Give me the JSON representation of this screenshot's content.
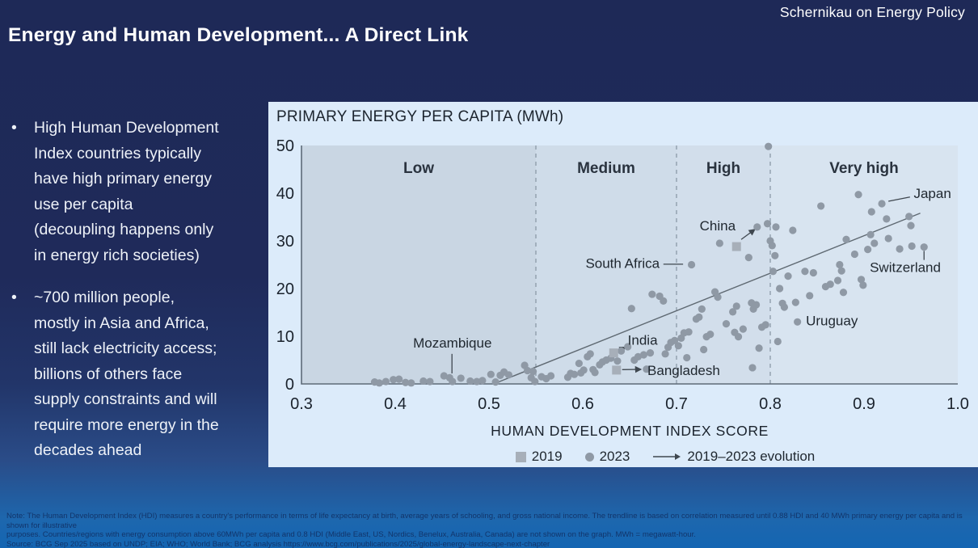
{
  "brand": "Schernikau on Energy Policy",
  "title": "Energy and Human Development... A Direct Link",
  "bullets": [
    "High Human Development\nIndex countries typically\nhave high primary energy\nuse per capita\n(decoupling happens only\nin energy rich societies)",
    "~700 million people,\nmostly in Asia and Africa,\nstill lack electricity access;\nbillions of others face\nsupply constraints and will\nrequire more energy in the\ndecades ahead"
  ],
  "chart": {
    "panel_title": "PRIMARY ENERGY PER CAPITA (MWh)",
    "legend": [
      {
        "marker": "square",
        "label": "2019"
      },
      {
        "marker": "dot",
        "label": "2023"
      },
      {
        "marker": "arrow",
        "label": "2019–2023 evolution"
      }
    ]
  },
  "chart_data": {
    "type": "scatter",
    "title": "PRIMARY ENERGY PER CAPITA (MWh)",
    "xlabel": "HUMAN DEVELOPMENT INDEX SCORE",
    "ylabel": "MWh per capita",
    "xlim": [
      0.3,
      1.0
    ],
    "ylim": [
      0,
      50
    ],
    "x_ticks": [
      "0.3",
      "0.4",
      "0.5",
      "0.6",
      "0.7",
      "0.8",
      "0.9",
      "1.0"
    ],
    "y_ticks": [
      "0",
      "10",
      "20",
      "30",
      "40",
      "50"
    ],
    "grid": false,
    "legend_position": "bottom",
    "bands": [
      {
        "label": "Low",
        "from": 0.3,
        "to": 0.55,
        "fill": "#c9d6e3"
      },
      {
        "label": "Medium",
        "from": 0.55,
        "to": 0.7,
        "fill": "#cfdce9"
      },
      {
        "label": "High",
        "from": 0.7,
        "to": 0.8,
        "fill": "#d2deeb"
      },
      {
        "label": "Very high",
        "from": 0.8,
        "to": 1.0,
        "fill": "#d8e4f0"
      }
    ],
    "trendline": {
      "x1": 0.505,
      "y1": 0,
      "x2": 0.96,
      "y2": 35.8,
      "note": "correlation measured until 0.88 HDI and 40 MWh"
    },
    "series": [
      {
        "name": "2023",
        "marker": "dot",
        "color": "#8f99a5",
        "points": [
          [
            0.378,
            0.4
          ],
          [
            0.383,
            0.2
          ],
          [
            0.39,
            0.5
          ],
          [
            0.398,
            0.9
          ],
          [
            0.404,
            1.0
          ],
          [
            0.411,
            0.3
          ],
          [
            0.417,
            0.2
          ],
          [
            0.43,
            0.6
          ],
          [
            0.437,
            0.5
          ],
          [
            0.452,
            1.7
          ],
          [
            0.458,
            1.3
          ],
          [
            0.461,
            0.5
          ],
          [
            0.47,
            1.2
          ],
          [
            0.48,
            0.6
          ],
          [
            0.487,
            0.5
          ],
          [
            0.493,
            0.7
          ],
          [
            0.502,
            2.0
          ],
          [
            0.507,
            0.4
          ],
          [
            0.512,
            1.8
          ],
          [
            0.516,
            2.5
          ],
          [
            0.521,
            1.9
          ],
          [
            0.538,
            3.9
          ],
          [
            0.541,
            2.8
          ],
          [
            0.545,
            1.3
          ],
          [
            0.547,
            2.6
          ],
          [
            0.549,
            0.5
          ],
          [
            0.556,
            1.5
          ],
          [
            0.561,
            1.1
          ],
          [
            0.566,
            1.7
          ],
          [
            0.584,
            1.4
          ],
          [
            0.587,
            2.2
          ],
          [
            0.591,
            2.0
          ],
          [
            0.596,
            4.3
          ],
          [
            0.598,
            2.3
          ],
          [
            0.601,
            2.9
          ],
          [
            0.605,
            5.7
          ],
          [
            0.608,
            6.3
          ],
          [
            0.611,
            3.0
          ],
          [
            0.613,
            2.4
          ],
          [
            0.618,
            4.0
          ],
          [
            0.621,
            4.6
          ],
          [
            0.625,
            5.0
          ],
          [
            0.63,
            5.4
          ],
          [
            0.637,
            4.8
          ],
          [
            0.641,
            6.9
          ],
          [
            0.648,
            7.8
          ],
          [
            0.652,
            15.8
          ],
          [
            0.655,
            5.0
          ],
          [
            0.659,
            5.7
          ],
          [
            0.665,
            6.1
          ],
          [
            0.668,
            3.1
          ],
          [
            0.672,
            6.5
          ],
          [
            0.674,
            18.8
          ],
          [
            0.682,
            18.4
          ],
          [
            0.686,
            17.4
          ],
          [
            0.688,
            6.3
          ],
          [
            0.691,
            7.7
          ],
          [
            0.694,
            8.7
          ],
          [
            0.698,
            9.1
          ],
          [
            0.702,
            8.0
          ],
          [
            0.705,
            9.6
          ],
          [
            0.708,
            10.7
          ],
          [
            0.711,
            5.5
          ],
          [
            0.713,
            10.9
          ],
          [
            0.716,
            25.0
          ],
          [
            0.721,
            13.6
          ],
          [
            0.724,
            14.0
          ],
          [
            0.727,
            15.7
          ],
          [
            0.729,
            7.2
          ],
          [
            0.732,
            9.9
          ],
          [
            0.736,
            10.4
          ],
          [
            0.741,
            19.3
          ],
          [
            0.744,
            18.2
          ],
          [
            0.746,
            29.5
          ],
          [
            0.753,
            12.6
          ],
          [
            0.76,
            15.1
          ],
          [
            0.762,
            10.8
          ],
          [
            0.764,
            16.3
          ],
          [
            0.766,
            9.9
          ],
          [
            0.771,
            11.5
          ],
          [
            0.777,
            26.5
          ],
          [
            0.78,
            17.0
          ],
          [
            0.781,
            3.4
          ],
          [
            0.782,
            15.7
          ],
          [
            0.785,
            16.6
          ],
          [
            0.786,
            32.9
          ],
          [
            0.788,
            7.5
          ],
          [
            0.791,
            11.9
          ],
          [
            0.795,
            12.4
          ],
          [
            0.798,
            49.8
          ],
          [
            0.797,
            33.6
          ],
          [
            0.8,
            30.0
          ],
          [
            0.802,
            29.0
          ],
          [
            0.803,
            23.6
          ],
          [
            0.805,
            26.9
          ],
          [
            0.806,
            32.9
          ],
          [
            0.808,
            8.9
          ],
          [
            0.81,
            20.0
          ],
          [
            0.813,
            16.9
          ],
          [
            0.815,
            16.1
          ],
          [
            0.819,
            22.6
          ],
          [
            0.824,
            32.2
          ],
          [
            0.827,
            17.1
          ],
          [
            0.829,
            13.0
          ],
          [
            0.837,
            23.6
          ],
          [
            0.842,
            18.5
          ],
          [
            0.846,
            23.3
          ],
          [
            0.854,
            37.3
          ],
          [
            0.859,
            20.4
          ],
          [
            0.864,
            20.9
          ],
          [
            0.872,
            21.7
          ],
          [
            0.874,
            25.0
          ],
          [
            0.876,
            23.7
          ],
          [
            0.878,
            19.2
          ],
          [
            0.881,
            30.3
          ],
          [
            0.89,
            27.2
          ],
          [
            0.894,
            39.7
          ],
          [
            0.897,
            21.9
          ],
          [
            0.899,
            20.7
          ],
          [
            0.904,
            28.2
          ],
          [
            0.907,
            31.3
          ],
          [
            0.908,
            36.1
          ],
          [
            0.911,
            29.5
          ],
          [
            0.919,
            37.8
          ],
          [
            0.924,
            34.6
          ],
          [
            0.926,
            30.5
          ],
          [
            0.938,
            28.3
          ],
          [
            0.948,
            35.1
          ],
          [
            0.95,
            33.2
          ],
          [
            0.951,
            28.9
          ],
          [
            0.964,
            28.7
          ]
        ]
      },
      {
        "name": "2019",
        "marker": "square",
        "color": "#a7afb9",
        "points": [
          [
            0.633,
            6.5
          ],
          [
            0.636,
            2.9
          ],
          [
            0.764,
            28.8
          ]
        ]
      }
    ],
    "annotations": [
      {
        "name": "mozambique",
        "label": "Mozambique",
        "tx": 0.461,
        "ty": 7.6,
        "anchor": "middle",
        "line": [
          0.4605,
          6.3,
          0.4605,
          2.2
        ],
        "arrow": false
      },
      {
        "name": "india",
        "label": "India",
        "tx": 0.648,
        "ty": 8.2,
        "anchor": "start",
        "line": [
          0.635,
          6.6,
          0.6455,
          7.7
        ],
        "arrow": true
      },
      {
        "name": "bangladesh",
        "label": "Bangladesh",
        "tx": 0.669,
        "ty": 1.9,
        "anchor": "start",
        "line": [
          0.642,
          3.0,
          0.662,
          3.05
        ],
        "arrow": true
      },
      {
        "name": "south-africa",
        "label": "South Africa",
        "tx": 0.682,
        "ty": 24.3,
        "anchor": "end",
        "line": [
          0.686,
          25.1,
          0.707,
          25.1
        ],
        "arrow": false
      },
      {
        "name": "china",
        "label": "China",
        "tx": 0.763,
        "ty": 32.2,
        "anchor": "end",
        "line": [
          0.769,
          30.3,
          0.7835,
          32.4
        ],
        "arrow": true
      },
      {
        "name": "japan",
        "label": "Japan",
        "tx": 0.953,
        "ty": 39.0,
        "anchor": "start",
        "line": [
          0.926,
          38.3,
          0.949,
          39.2
        ],
        "arrow": false
      },
      {
        "name": "switzerland",
        "label": "Switzerland",
        "tx": 0.944,
        "ty": 23.5,
        "anchor": "middle",
        "line": [
          0.964,
          27.9,
          0.964,
          26.0
        ],
        "arrow": false
      },
      {
        "name": "uruguay",
        "label": "Uruguay",
        "tx": 0.838,
        "ty": 12.3,
        "anchor": "start",
        "line": null,
        "arrow": false
      }
    ],
    "style": {
      "card_bg": "#dcebfa",
      "axis_color": "#5e6b78",
      "separator_color": "#8694a2",
      "trendline_color": "#5f6972",
      "connector_color": "#3f474f",
      "dot_radius": 4.6,
      "square_size": 11
    }
  },
  "notes": [
    "Note: The Human Development Index (HDI) measures a country's performance in terms of life expectancy at birth, average years of schooling, and gross national income. The trendline is based on correlation measured until 0.88 HDI and 40 MWh primary energy per capita and is shown for illustrative",
    "purposes. Countries/regions with energy consumption above 60MWh per capita and 0.8 HDI (Middle East, US, Nordics, Benelux, Australia, Canada) are not shown on the graph. MWh = megawatt-hour.",
    "Source: BCG Sep 2025 based on UNDP; EIA; WHO; World Bank; BCG analysis  https://www.bcg.com/publications/2025/global-energy-landscape-next-chapter"
  ]
}
